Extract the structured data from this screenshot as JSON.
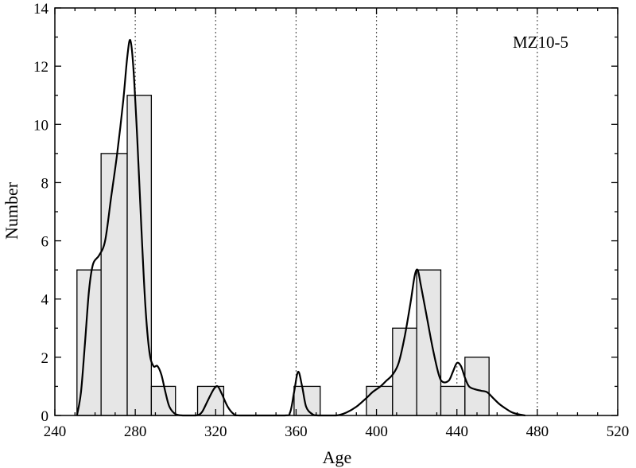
{
  "chart_data": {
    "type": "bar",
    "xlabel": "Age",
    "ylabel": "Number",
    "xlim": [
      240,
      520
    ],
    "ylim": [
      0,
      14
    ],
    "xticks": [
      240,
      280,
      320,
      360,
      400,
      440,
      480,
      520
    ],
    "yticks": [
      0,
      2,
      4,
      6,
      8,
      10,
      12,
      14
    ],
    "x_minor_step": 10,
    "y_minor_step": 1,
    "grid": "vertical dotted lines at 280, 320, 360, 400, 440, 480",
    "gridlines_x": [
      280,
      320,
      360,
      400,
      440,
      480
    ],
    "annotation": "MZ10-5",
    "bar_color": "#e6e6e6",
    "bars": [
      {
        "x0": 251,
        "x1": 263,
        "value": 5
      },
      {
        "x0": 263,
        "x1": 276,
        "value": 9
      },
      {
        "x0": 276,
        "x1": 288,
        "value": 11
      },
      {
        "x0": 288,
        "x1": 300,
        "value": 1
      },
      {
        "x0": 311,
        "x1": 324,
        "value": 1
      },
      {
        "x0": 359,
        "x1": 372,
        "value": 1
      },
      {
        "x0": 395,
        "x1": 408,
        "value": 1
      },
      {
        "x0": 408,
        "x1": 420,
        "value": 3
      },
      {
        "x0": 420,
        "x1": 432,
        "value": 5
      },
      {
        "x0": 432,
        "x1": 444,
        "value": 1
      },
      {
        "x0": 444,
        "x1": 456,
        "value": 2
      }
    ],
    "density_curve": [
      [
        251,
        0
      ],
      [
        253,
        0.8
      ],
      [
        255,
        2.5
      ],
      [
        257,
        4.3
      ],
      [
        259,
        5.2
      ],
      [
        262,
        5.5
      ],
      [
        265,
        6.0
      ],
      [
        268,
        7.5
      ],
      [
        271,
        9.0
      ],
      [
        274,
        10.8
      ],
      [
        276,
        12.3
      ],
      [
        277.5,
        12.9
      ],
      [
        279,
        12.0
      ],
      [
        281,
        9.5
      ],
      [
        283,
        6.5
      ],
      [
        285,
        3.8
      ],
      [
        287,
        2.2
      ],
      [
        289,
        1.7
      ],
      [
        291,
        1.7
      ],
      [
        293,
        1.4
      ],
      [
        295,
        0.8
      ],
      [
        297,
        0.3
      ],
      [
        300,
        0.05
      ],
      [
        304,
        0
      ],
      [
        310,
        0
      ],
      [
        313,
        0.1
      ],
      [
        316,
        0.5
      ],
      [
        319,
        0.9
      ],
      [
        321,
        1.0
      ],
      [
        323,
        0.75
      ],
      [
        326,
        0.3
      ],
      [
        329,
        0.05
      ],
      [
        332,
        0
      ],
      [
        354,
        0
      ],
      [
        357,
        0.1
      ],
      [
        359,
        0.8
      ],
      [
        361,
        1.5
      ],
      [
        363,
        1.0
      ],
      [
        365,
        0.3
      ],
      [
        368,
        0.05
      ],
      [
        371,
        0
      ],
      [
        380,
        0
      ],
      [
        385,
        0.1
      ],
      [
        390,
        0.3
      ],
      [
        395,
        0.6
      ],
      [
        398,
        0.8
      ],
      [
        402,
        1.0
      ],
      [
        405,
        1.2
      ],
      [
        408,
        1.4
      ],
      [
        411,
        1.8
      ],
      [
        414,
        2.7
      ],
      [
        417,
        3.9
      ],
      [
        419,
        4.8
      ],
      [
        420.5,
        5.0
      ],
      [
        422,
        4.5
      ],
      [
        425,
        3.4
      ],
      [
        428,
        2.3
      ],
      [
        431,
        1.4
      ],
      [
        433,
        1.15
      ],
      [
        436,
        1.2
      ],
      [
        438,
        1.5
      ],
      [
        440,
        1.8
      ],
      [
        442,
        1.7
      ],
      [
        444,
        1.3
      ],
      [
        446,
        1.0
      ],
      [
        449,
        0.9
      ],
      [
        452,
        0.85
      ],
      [
        455,
        0.8
      ],
      [
        458,
        0.6
      ],
      [
        461,
        0.4
      ],
      [
        464,
        0.25
      ],
      [
        467,
        0.12
      ],
      [
        470,
        0.05
      ],
      [
        474,
        0
      ]
    ]
  }
}
